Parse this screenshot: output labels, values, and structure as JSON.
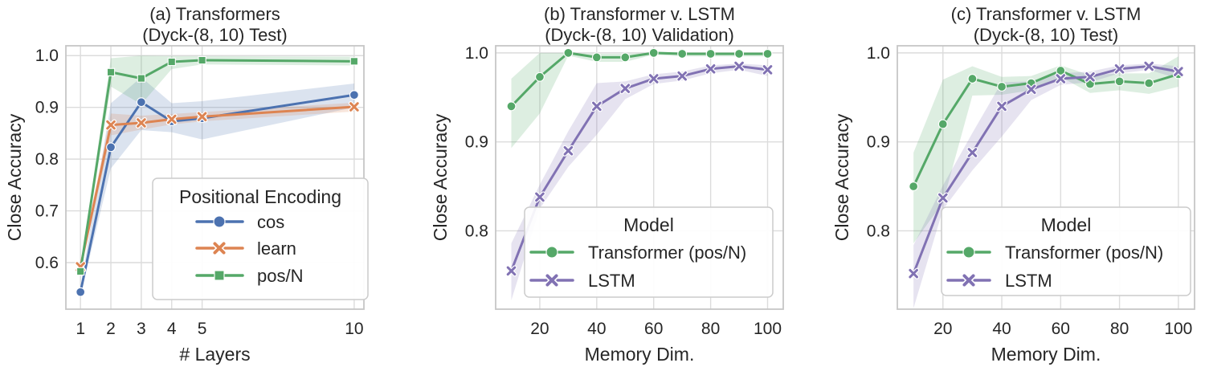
{
  "colors": {
    "cos_blue": "#4C72B0",
    "learn_orange": "#DD8452",
    "posn_green": "#55A868",
    "lstm_purple": "#8172B3",
    "text": "#262626",
    "grid": "#DCDCDC",
    "spine": "#C6C6C6",
    "legend_border": "#CCCCCC"
  },
  "chart_data": [
    {
      "id": "a",
      "type": "line",
      "title_lines": [
        "(a) Transformers",
        "(Dyck-(8, 10) Test)"
      ],
      "xlabel": "# Layers",
      "ylabel": "Close Accuracy",
      "xlim": [
        0.52,
        10.32
      ],
      "ylim": [
        0.51,
        1.019
      ],
      "xtick_values": [
        1,
        2,
        3,
        4,
        5,
        10
      ],
      "xtick_labels": [
        "1",
        "2",
        "3",
        "4",
        "5",
        "10"
      ],
      "ytick_values": [
        0.6,
        0.7,
        0.8,
        0.9,
        1.0
      ],
      "ytick_labels": [
        "0.6",
        "0.7",
        "0.8",
        "0.9",
        "1.0"
      ],
      "grid": true,
      "legend_title": "Positional Encoding",
      "legend_position": "lower right",
      "x": [
        1,
        2,
        3,
        4,
        5,
        10
      ],
      "series": [
        {
          "name": "cos",
          "color": "#4C72B0",
          "marker": "circle",
          "values": [
            0.543,
            0.823,
            0.91,
            0.873,
            0.879,
            0.924
          ],
          "band_lo": [
            0.536,
            0.782,
            0.856,
            0.852,
            0.838,
            0.9
          ],
          "band_hi": [
            0.551,
            0.908,
            0.958,
            0.908,
            0.912,
            0.946
          ]
        },
        {
          "name": "learn",
          "color": "#DD8452",
          "marker": "x",
          "values": [
            0.592,
            0.866,
            0.87,
            0.877,
            0.882,
            0.901
          ],
          "band_lo": [
            0.585,
            0.846,
            0.857,
            0.867,
            0.873,
            0.892
          ],
          "band_hi": [
            0.6,
            0.888,
            0.884,
            0.887,
            0.891,
            0.909
          ]
        },
        {
          "name": "pos/N",
          "color": "#55A868",
          "marker": "square",
          "values": [
            0.583,
            0.968,
            0.956,
            0.988,
            0.991,
            0.989
          ],
          "band_lo": [
            0.575,
            0.94,
            0.906,
            0.974,
            0.983,
            0.981
          ],
          "band_hi": [
            0.592,
            0.995,
            1.0,
            0.999,
            0.999,
            0.998
          ]
        }
      ]
    },
    {
      "id": "b",
      "type": "line",
      "title_lines": [
        "(b) Transformer v. LSTM",
        "(Dyck-(8, 10) Validation)"
      ],
      "xlabel": "Memory Dim.",
      "ylabel": "Close Accuracy",
      "xlim": [
        4.5,
        105.5
      ],
      "ylim": [
        0.712,
        1.008
      ],
      "xtick_values": [
        20,
        40,
        60,
        80,
        100
      ],
      "xtick_labels": [
        "20",
        "40",
        "60",
        "80",
        "100"
      ],
      "ytick_values": [
        0.8,
        0.9,
        1.0
      ],
      "ytick_labels": [
        "0.8",
        "0.9",
        "1.0"
      ],
      "grid": true,
      "legend_title": "Model",
      "legend_position": "lower right",
      "x": [
        10,
        20,
        30,
        40,
        50,
        60,
        70,
        80,
        90,
        100
      ],
      "series": [
        {
          "name": "Transformer (pos/N)",
          "color": "#55A868",
          "marker": "circle",
          "values": [
            0.94,
            0.973,
            1.0,
            0.995,
            0.995,
            1.0,
            0.999,
            0.999,
            0.999,
            0.999
          ],
          "band_lo": [
            0.893,
            0.932,
            0.997,
            0.99,
            0.99,
            0.998,
            0.996,
            0.996,
            0.996,
            0.996
          ],
          "band_hi": [
            0.971,
            1.0,
            1.0,
            0.999,
            0.999,
            1.0,
            1.0,
            1.0,
            1.0,
            1.0
          ]
        },
        {
          "name": "LSTM",
          "color": "#8172B3",
          "marker": "x",
          "values": [
            0.755,
            0.838,
            0.89,
            0.94,
            0.96,
            0.971,
            0.974,
            0.982,
            0.985,
            0.981
          ],
          "band_lo": [
            0.722,
            0.825,
            0.872,
            0.908,
            0.948,
            0.965,
            0.969,
            0.977,
            0.981,
            0.974
          ],
          "band_hi": [
            0.786,
            0.852,
            0.912,
            0.966,
            0.968,
            0.976,
            0.979,
            0.986,
            0.988,
            0.986
          ]
        }
      ]
    },
    {
      "id": "c",
      "type": "line",
      "title_lines": [
        "(c) Transformer v. LSTM",
        "(Dyck-(8, 10) Test)"
      ],
      "xlabel": "Memory Dim.",
      "ylabel": "Close Accuracy",
      "xlim": [
        4.5,
        105.5
      ],
      "ylim": [
        0.712,
        1.008
      ],
      "xtick_values": [
        20,
        40,
        60,
        80,
        100
      ],
      "xtick_labels": [
        "20",
        "40",
        "60",
        "80",
        "100"
      ],
      "ytick_values": [
        0.8,
        0.9,
        1.0
      ],
      "ytick_labels": [
        "0.8",
        "0.9",
        "1.0"
      ],
      "grid": true,
      "legend_title": "Model",
      "legend_position": "lower right",
      "x": [
        10,
        20,
        30,
        40,
        50,
        60,
        70,
        80,
        90,
        100
      ],
      "series": [
        {
          "name": "Transformer (pos/N)",
          "color": "#55A868",
          "marker": "circle",
          "values": [
            0.85,
            0.92,
            0.971,
            0.962,
            0.966,
            0.98,
            0.965,
            0.968,
            0.966,
            0.976
          ],
          "band_lo": [
            0.786,
            0.832,
            0.952,
            0.953,
            0.958,
            0.973,
            0.955,
            0.958,
            0.954,
            0.962
          ],
          "band_hi": [
            0.888,
            0.97,
            0.985,
            0.973,
            0.974,
            0.986,
            0.975,
            0.977,
            0.977,
            0.996
          ]
        },
        {
          "name": "LSTM",
          "color": "#8172B3",
          "marker": "x",
          "values": [
            0.752,
            0.837,
            0.888,
            0.94,
            0.959,
            0.971,
            0.973,
            0.982,
            0.985,
            0.979
          ],
          "band_lo": [
            0.713,
            0.824,
            0.868,
            0.906,
            0.947,
            0.964,
            0.967,
            0.977,
            0.981,
            0.971
          ],
          "band_hi": [
            0.784,
            0.851,
            0.91,
            0.967,
            0.968,
            0.977,
            0.979,
            0.986,
            0.988,
            0.985
          ]
        }
      ]
    }
  ]
}
